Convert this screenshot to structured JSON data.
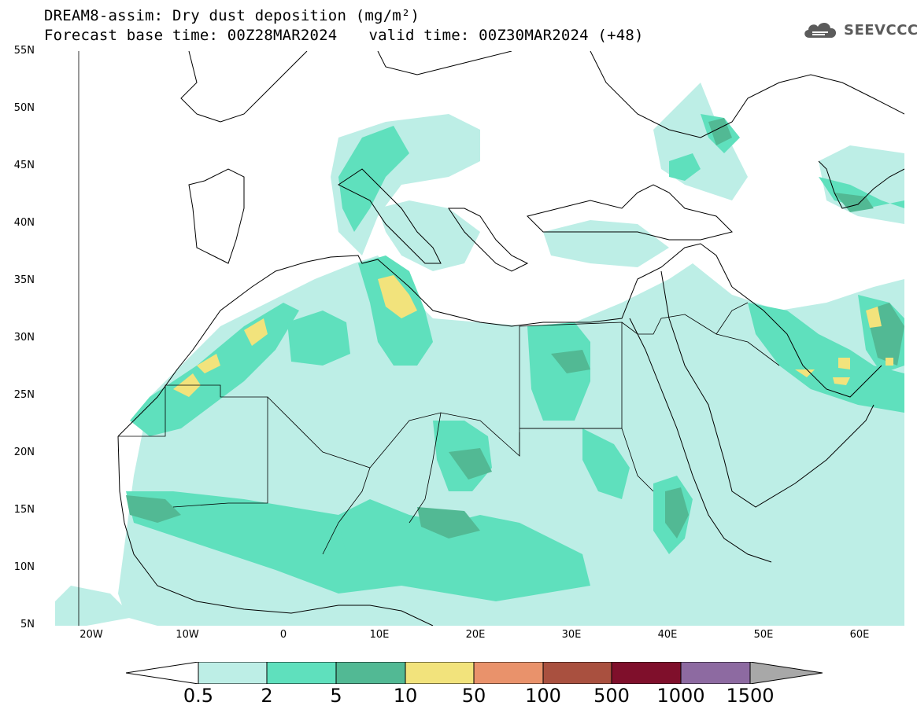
{
  "title": {
    "line1": "DREAM8-assim: Dry dust deposition (mg/m²)",
    "base_time": "Forecast base time: 00Z28MAR2024",
    "valid_time": "valid time: 00Z30MAR2024 (+48)"
  },
  "logo": {
    "text": "SEEVCCC",
    "icon": "cloud-icon"
  },
  "axes": {
    "lat_labels": [
      "55N",
      "50N",
      "45N",
      "40N",
      "35N",
      "30N",
      "25N",
      "20N",
      "15N",
      "10N",
      "5N"
    ],
    "lon_labels": [
      "20W",
      "10W",
      "0",
      "10E",
      "20E",
      "30E",
      "40E",
      "50E",
      "60E"
    ],
    "lat_range": [
      5,
      55
    ],
    "lon_range": [
      -25,
      65
    ]
  },
  "legend": {
    "labels": [
      "0.5",
      "2",
      "5",
      "10",
      "50",
      "100",
      "500",
      "1000",
      "1500"
    ],
    "colors": [
      "#bdeee6",
      "#5fe0bd",
      "#52b994",
      "#f2e37c",
      "#e9926b",
      "#a9503f",
      "#7f0f2b",
      "#8d6aa1",
      "#a8a8a8"
    ],
    "background": "#ffffff"
  }
}
